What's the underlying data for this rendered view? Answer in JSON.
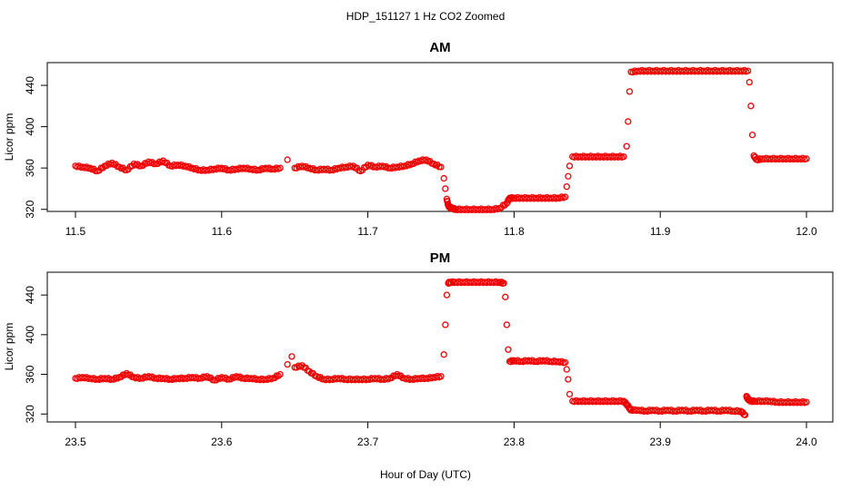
{
  "figure": {
    "title": "HDP_151127  1 Hz CO2 Zoomed",
    "xlabel": "Hour of Day (UTC)"
  },
  "chart_data": [
    {
      "type": "scatter",
      "title": "AM",
      "xlabel": "",
      "ylabel": "Licor ppm",
      "xlim": [
        11.5,
        12.0
      ],
      "ylim": [
        318,
        462
      ],
      "xticks": [
        "11.5",
        "11.6",
        "11.7",
        "11.8",
        "11.9",
        "12.0"
      ],
      "yticks": [
        "320",
        "360",
        "400",
        "440"
      ],
      "marker": "open-circle",
      "color": "#ee0000",
      "series": [
        {
          "x": [
            11.5,
            11.505,
            11.51,
            11.515,
            11.52,
            11.525,
            11.53,
            11.535,
            11.54,
            11.545,
            11.55,
            11.555,
            11.56,
            11.565,
            11.57,
            11.575,
            11.58,
            11.585,
            11.59,
            11.595,
            11.6,
            11.605,
            11.61,
            11.615,
            11.62,
            11.625,
            11.63,
            11.635,
            11.64,
            11.645,
            11.65,
            11.655,
            11.66,
            11.665,
            11.67,
            11.675,
            11.68,
            11.685,
            11.69,
            11.695,
            11.7,
            11.705,
            11.71,
            11.715,
            11.72,
            11.725,
            11.73,
            11.735,
            11.74,
            11.745,
            11.75,
            11.752,
            11.753,
            11.754,
            11.755,
            11.756,
            11.758,
            11.76,
            11.765,
            11.77,
            11.775,
            11.78,
            11.785,
            11.79,
            11.795,
            11.797,
            11.8,
            11.805,
            11.81,
            11.815,
            11.82,
            11.825,
            11.83,
            11.835,
            11.836,
            11.837,
            11.838,
            11.84,
            11.845,
            11.85,
            11.855,
            11.86,
            11.865,
            11.87,
            11.875,
            11.877,
            11.878,
            11.879,
            11.88,
            11.885,
            11.89,
            11.895,
            11.9,
            11.905,
            11.91,
            11.915,
            11.92,
            11.925,
            11.93,
            11.935,
            11.94,
            11.945,
            11.95,
            11.955,
            11.96,
            11.961,
            11.962,
            11.963,
            11.964,
            11.966,
            11.97,
            11.975,
            11.98,
            11.985,
            11.99,
            11.995,
            12.0
          ],
          "y": [
            362,
            361,
            360,
            357,
            362,
            365,
            361,
            358,
            364,
            362,
            366,
            364,
            367,
            362,
            363,
            362,
            360,
            358,
            358,
            359,
            360,
            358,
            359,
            360,
            359,
            358,
            360,
            359,
            360,
            368,
            360,
            362,
            360,
            358,
            359,
            358,
            360,
            361,
            362,
            357,
            363,
            361,
            362,
            360,
            361,
            362,
            364,
            367,
            368,
            364,
            361,
            350,
            340,
            330,
            324,
            322,
            321,
            320,
            320,
            320,
            320,
            320,
            320,
            321,
            326,
            331,
            331,
            331,
            331,
            331,
            331,
            331,
            331,
            332,
            342,
            352,
            362,
            371,
            371,
            371,
            371,
            371,
            371,
            371,
            371,
            381,
            405,
            434,
            453,
            454,
            454,
            454,
            454,
            454,
            454,
            454,
            454,
            454,
            454,
            454,
            454,
            454,
            454,
            454,
            454,
            443,
            420,
            392,
            372,
            368,
            369,
            369,
            369,
            369,
            369,
            369,
            369
          ]
        }
      ]
    },
    {
      "type": "scatter",
      "title": "PM",
      "xlabel": "Hour of Day (UTC)",
      "ylabel": "Licor ppm",
      "xlim": [
        23.5,
        24.0
      ],
      "ylim": [
        312,
        463
      ],
      "xticks": [
        "23.5",
        "23.6",
        "23.7",
        "23.8",
        "23.9",
        "24.0"
      ],
      "yticks": [
        "320",
        "360",
        "400",
        "440"
      ],
      "marker": "open-circle",
      "color": "#ee0000",
      "series": [
        {
          "x": [
            23.5,
            23.505,
            23.51,
            23.515,
            23.52,
            23.525,
            23.53,
            23.535,
            23.54,
            23.545,
            23.55,
            23.555,
            23.56,
            23.565,
            23.57,
            23.575,
            23.58,
            23.585,
            23.59,
            23.595,
            23.6,
            23.605,
            23.61,
            23.615,
            23.62,
            23.625,
            23.63,
            23.635,
            23.64,
            23.645,
            23.648,
            23.65,
            23.655,
            23.66,
            23.665,
            23.67,
            23.675,
            23.68,
            23.685,
            23.69,
            23.695,
            23.7,
            23.705,
            23.71,
            23.715,
            23.72,
            23.725,
            23.73,
            23.735,
            23.74,
            23.745,
            23.75,
            23.752,
            23.753,
            23.754,
            23.755,
            23.756,
            23.76,
            23.765,
            23.77,
            23.775,
            23.78,
            23.785,
            23.79,
            23.793,
            23.794,
            23.795,
            23.796,
            23.797,
            23.8,
            23.805,
            23.81,
            23.815,
            23.82,
            23.825,
            23.83,
            23.835,
            23.836,
            23.837,
            23.838,
            23.84,
            23.845,
            23.85,
            23.855,
            23.86,
            23.865,
            23.87,
            23.875,
            23.877,
            23.879,
            23.88,
            23.885,
            23.89,
            23.895,
            23.9,
            23.905,
            23.91,
            23.915,
            23.92,
            23.925,
            23.93,
            23.935,
            23.94,
            23.945,
            23.95,
            23.955,
            23.958,
            23.959,
            23.96,
            23.962,
            23.965,
            23.97,
            23.975,
            23.98,
            23.985,
            23.99,
            23.995,
            24.0
          ],
          "y": [
            356,
            357,
            356,
            355,
            356,
            355,
            357,
            361,
            357,
            356,
            358,
            356,
            356,
            355,
            356,
            356,
            357,
            356,
            358,
            354,
            357,
            355,
            358,
            356,
            356,
            355,
            355,
            356,
            360,
            370,
            378,
            367,
            369,
            363,
            358,
            355,
            355,
            356,
            355,
            355,
            355,
            355,
            356,
            355,
            356,
            360,
            356,
            355,
            356,
            356,
            357,
            358,
            380,
            410,
            440,
            452,
            453,
            453,
            453,
            453,
            453,
            453,
            453,
            453,
            452,
            438,
            410,
            385,
            373,
            374,
            373,
            374,
            373,
            374,
            373,
            373,
            372,
            365,
            355,
            340,
            333,
            333,
            333,
            333,
            333,
            333,
            333,
            333,
            330,
            326,
            324,
            324,
            323,
            324,
            323,
            324,
            323,
            324,
            323,
            324,
            323,
            324,
            323,
            324,
            323,
            323,
            319,
            338,
            335,
            333,
            333,
            333,
            333,
            332,
            332,
            332,
            332,
            332
          ]
        }
      ]
    }
  ]
}
